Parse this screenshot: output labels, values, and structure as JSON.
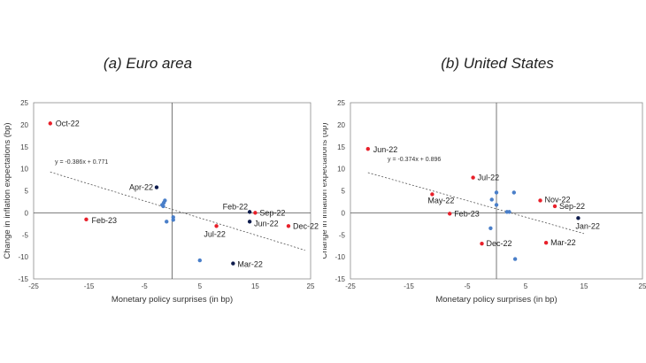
{
  "titles": [
    "(a)  Euro area",
    "(b) United States"
  ],
  "chart_data": [
    {
      "type": "scatter",
      "title": "(a)  Euro area",
      "xlabel": "Monetary policy surprises (in bp)",
      "ylabel": "Change in inflation expectations (bp)",
      "xlim": [
        -25,
        25
      ],
      "ylim": [
        -15,
        25
      ],
      "xticks": [
        "-25",
        "-15",
        "-5",
        "5",
        "15",
        "25"
      ],
      "yticks": [
        "25",
        "20",
        "15",
        "10",
        "5",
        "0",
        "-5",
        "-10",
        "-15"
      ],
      "grid": false,
      "trendline": {
        "equation": "y = -0.386x + 0.771",
        "slope": -0.386,
        "intercept": 0.771,
        "x_range": [
          -22,
          24
        ]
      },
      "labeled_points": [
        {
          "label": "Oct-22",
          "x": -22,
          "y": 20.3,
          "color": "#e8202a"
        },
        {
          "label": "Feb-23",
          "x": -15.5,
          "y": -1.5,
          "color": "#e8202a"
        },
        {
          "label": "Apr-22",
          "x": -2.8,
          "y": 5.8,
          "color": "#0d1b4c"
        },
        {
          "label": "Jul-22",
          "x": 8,
          "y": -3,
          "color": "#e8202a"
        },
        {
          "label": "Feb-22",
          "x": 14,
          "y": 0.2,
          "color": "#0d1b4c"
        },
        {
          "label": "Sep-22",
          "x": 15,
          "y": 0,
          "color": "#e8202a"
        },
        {
          "label": "Jun-22",
          "x": 14,
          "y": -2,
          "color": "#0d1b4c"
        },
        {
          "label": "Dec-22",
          "x": 21,
          "y": -3,
          "color": "#e8202a"
        },
        {
          "label": "Mar-22",
          "x": 11,
          "y": -11.5,
          "color": "#0d1b4c"
        }
      ],
      "other_points": [
        {
          "x": -1.8,
          "y": 1.8
        },
        {
          "x": -1.5,
          "y": 2.3
        },
        {
          "x": -1.3,
          "y": 2.8
        },
        {
          "x": -1.6,
          "y": 1.5
        },
        {
          "x": -1,
          "y": -2
        },
        {
          "x": 0.2,
          "y": -1
        },
        {
          "x": 0.2,
          "y": -1.6
        },
        {
          "x": 5,
          "y": -10.8
        }
      ],
      "other_color": "#4a7fc9"
    },
    {
      "type": "scatter",
      "title": "(b) United States",
      "xlabel": "Monetary policy surprises (in bp)",
      "ylabel": "Change in inflation expectations (bp)",
      "xlim": [
        -25,
        25
      ],
      "ylim": [
        -15,
        25
      ],
      "xticks": [
        "-25",
        "-15",
        "-5",
        "5",
        "15",
        "25"
      ],
      "yticks": [
        "25",
        "20",
        "15",
        "10",
        "5",
        "0",
        "-5",
        "-10",
        "-15"
      ],
      "grid": false,
      "trendline": {
        "equation": "y = -0.374x + 0.896",
        "slope": -0.374,
        "intercept": 0.896,
        "x_range": [
          -22,
          15
        ]
      },
      "labeled_points": [
        {
          "label": "Jun-22",
          "x": -22,
          "y": 14.5,
          "color": "#e8202a"
        },
        {
          "label": "Jul-22",
          "x": -4,
          "y": 8,
          "color": "#e8202a"
        },
        {
          "label": "May-22",
          "x": -11,
          "y": 4.2,
          "color": "#e8202a"
        },
        {
          "label": "Feb-23",
          "x": -8,
          "y": -0.2,
          "color": "#e8202a"
        },
        {
          "label": "Nov-22",
          "x": 7.5,
          "y": 2.8,
          "color": "#e8202a"
        },
        {
          "label": "Sep-22",
          "x": 10,
          "y": 1.5,
          "color": "#e8202a"
        },
        {
          "label": "Jan-22",
          "x": 14,
          "y": -1.2,
          "color": "#0d1b4c"
        },
        {
          "label": "Dec-22",
          "x": -2.5,
          "y": -7,
          "color": "#e8202a"
        },
        {
          "label": "Mar-22",
          "x": 8.5,
          "y": -6.8,
          "color": "#e8202a"
        }
      ],
      "other_points": [
        {
          "x": 0,
          "y": 4.6
        },
        {
          "x": 3,
          "y": 4.6
        },
        {
          "x": -0.8,
          "y": 3
        },
        {
          "x": 0,
          "y": 1.8
        },
        {
          "x": 1.8,
          "y": 0.2
        },
        {
          "x": 2.2,
          "y": 0.2
        },
        {
          "x": -1,
          "y": -3.5
        },
        {
          "x": 3.2,
          "y": -10.5
        }
      ],
      "other_color": "#4a7fc9"
    }
  ]
}
